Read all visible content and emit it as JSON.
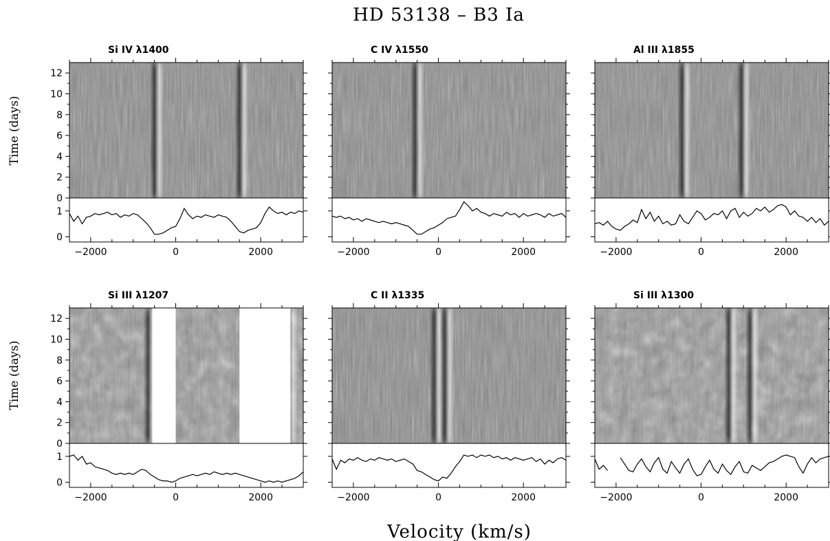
{
  "figure": {
    "title": "HD 53138  – B3 Ia",
    "xlabel": "Velocity (km/s)",
    "ylabel": "Time (days)"
  },
  "chart_data": [
    {
      "type": "heatmap",
      "title": "Si IV λ1400",
      "xlim": [
        -2500,
        3000
      ],
      "ylim": [
        0,
        13
      ],
      "xticks": [
        -2000,
        0,
        2000
      ],
      "yticks": [
        0,
        2,
        4,
        6,
        8,
        10,
        12
      ],
      "features_velocity": [
        -450,
        1550
      ],
      "masked_ranges": [],
      "profile": {
        "ylim": [
          -0.2,
          1.5
        ],
        "yticks": [
          0,
          1
        ],
        "x": [
          -2500,
          -2400,
          -2300,
          -2200,
          -2100,
          -2000,
          -1900,
          -1800,
          -1700,
          -1600,
          -1500,
          -1400,
          -1300,
          -1200,
          -1100,
          -1000,
          -900,
          -800,
          -700,
          -600,
          -500,
          -400,
          -300,
          -200,
          -100,
          0,
          100,
          200,
          300,
          400,
          500,
          600,
          700,
          800,
          900,
          1000,
          1100,
          1200,
          1300,
          1400,
          1500,
          1600,
          1700,
          1800,
          1900,
          2000,
          2100,
          2200,
          2300,
          2400,
          2500,
          2600,
          2700,
          2800,
          2900,
          3000
        ],
        "y": [
          0.9,
          0.6,
          0.8,
          0.5,
          0.75,
          0.8,
          0.9,
          0.85,
          0.9,
          0.95,
          0.85,
          0.9,
          0.75,
          0.85,
          0.8,
          0.9,
          0.85,
          0.7,
          0.55,
          0.35,
          0.1,
          0.1,
          0.15,
          0.25,
          0.35,
          0.4,
          0.7,
          1.1,
          0.85,
          0.7,
          0.8,
          0.75,
          0.85,
          0.8,
          0.75,
          0.85,
          0.8,
          0.75,
          0.6,
          0.4,
          0.2,
          0.15,
          0.25,
          0.3,
          0.35,
          0.55,
          0.9,
          1.15,
          1.0,
          0.9,
          0.95,
          0.85,
          0.95,
          0.9,
          1.0,
          0.95
        ]
      }
    },
    {
      "type": "heatmap",
      "title": "C IV λ1550",
      "xlim": [
        -2500,
        3000
      ],
      "ylim": [
        0,
        13
      ],
      "xticks": [
        -2000,
        0,
        2000
      ],
      "yticks": [
        0,
        2,
        4,
        6,
        8,
        10,
        12
      ],
      "features_velocity": [
        -500
      ],
      "masked_ranges": [],
      "profile": {
        "ylim": [
          -0.2,
          1.5
        ],
        "yticks": [
          0,
          1
        ],
        "x": [
          -2500,
          -2400,
          -2300,
          -2200,
          -2100,
          -2000,
          -1900,
          -1800,
          -1700,
          -1600,
          -1500,
          -1400,
          -1300,
          -1200,
          -1100,
          -1000,
          -900,
          -800,
          -700,
          -600,
          -500,
          -400,
          -300,
          -200,
          -100,
          0,
          100,
          200,
          300,
          400,
          500,
          600,
          700,
          800,
          900,
          1000,
          1100,
          1200,
          1300,
          1400,
          1500,
          1600,
          1700,
          1800,
          1900,
          2000,
          2100,
          2200,
          2300,
          2400,
          2500,
          2600,
          2700,
          2800,
          2900,
          3000
        ],
        "y": [
          0.8,
          0.75,
          0.8,
          0.7,
          0.75,
          0.65,
          0.7,
          0.6,
          0.7,
          0.65,
          0.6,
          0.55,
          0.6,
          0.55,
          0.5,
          0.55,
          0.5,
          0.45,
          0.4,
          0.25,
          0.1,
          0.1,
          0.2,
          0.3,
          0.35,
          0.45,
          0.55,
          0.7,
          0.75,
          0.8,
          1.05,
          1.35,
          1.2,
          1.0,
          1.1,
          0.95,
          0.9,
          0.8,
          0.9,
          0.85,
          0.8,
          0.95,
          0.85,
          0.9,
          0.75,
          0.9,
          0.8,
          0.85,
          0.9,
          0.85,
          0.75,
          0.9,
          0.8,
          0.85,
          0.9,
          0.75
        ]
      }
    },
    {
      "type": "heatmap",
      "title": "Al III λ1855",
      "xlim": [
        -2500,
        3000
      ],
      "ylim": [
        0,
        13
      ],
      "xticks": [
        -2000,
        0,
        2000
      ],
      "yticks": [
        0,
        2,
        4,
        6,
        8,
        10,
        12
      ],
      "features_velocity": [
        -400,
        1000
      ],
      "masked_ranges": [],
      "profile": {
        "ylim": [
          -0.2,
          1.5
        ],
        "yticks": [
          0,
          1
        ],
        "x": [
          -2500,
          -2400,
          -2300,
          -2200,
          -2100,
          -2000,
          -1900,
          -1800,
          -1700,
          -1600,
          -1500,
          -1400,
          -1300,
          -1200,
          -1100,
          -1000,
          -900,
          -800,
          -700,
          -600,
          -500,
          -400,
          -300,
          -200,
          -100,
          0,
          100,
          200,
          300,
          400,
          500,
          600,
          700,
          800,
          900,
          1000,
          1100,
          1200,
          1300,
          1400,
          1500,
          1600,
          1700,
          1800,
          1900,
          2000,
          2100,
          2200,
          2300,
          2400,
          2500,
          2600,
          2700,
          2800,
          2900,
          3000
        ],
        "y": [
          0.5,
          0.55,
          0.45,
          0.6,
          0.4,
          0.3,
          0.25,
          0.4,
          0.5,
          0.65,
          0.55,
          1.05,
          0.7,
          0.95,
          0.6,
          0.8,
          0.5,
          0.6,
          0.45,
          0.5,
          0.85,
          0.6,
          0.5,
          0.75,
          1.0,
          0.9,
          0.65,
          0.75,
          0.9,
          0.85,
          1.0,
          0.7,
          1.0,
          1.1,
          0.75,
          0.95,
          0.8,
          0.9,
          1.1,
          1.0,
          1.15,
          0.95,
          1.05,
          1.2,
          1.25,
          1.15,
          0.85,
          1.0,
          0.8,
          0.75,
          0.6,
          0.75,
          0.55,
          0.7,
          0.45,
          0.6
        ]
      }
    },
    {
      "type": "heatmap",
      "title": "Si III λ1207",
      "xlim": [
        -2500,
        3000
      ],
      "ylim": [
        0,
        13
      ],
      "xticks": [
        -2000,
        0,
        2000
      ],
      "yticks": [
        0,
        2,
        4,
        6,
        8,
        10,
        12
      ],
      "features_velocity": [
        -600,
        2700
      ],
      "masked_ranges": [
        [
          -550,
          0
        ],
        [
          1500,
          2700
        ]
      ],
      "profile": {
        "ylim": [
          -0.2,
          1.5
        ],
        "yticks": [
          0,
          1
        ],
        "x": [
          -2500,
          -2400,
          -2300,
          -2200,
          -2100,
          -2000,
          -1900,
          -1800,
          -1700,
          -1600,
          -1500,
          -1400,
          -1300,
          -1200,
          -1100,
          -1000,
          -900,
          -800,
          -700,
          -600,
          -500,
          -400,
          -300,
          -200,
          -100,
          0,
          100,
          200,
          300,
          400,
          500,
          600,
          700,
          800,
          900,
          1000,
          1100,
          1200,
          1300,
          1400,
          1500,
          1600,
          1700,
          1800,
          1900,
          2000,
          2100,
          2200,
          2300,
          2400,
          2500,
          2600,
          2700,
          2800,
          2900,
          3000
        ],
        "y": [
          1.0,
          1.05,
          0.85,
          1.0,
          0.7,
          0.75,
          0.6,
          0.55,
          0.5,
          0.45,
          0.35,
          0.3,
          0.35,
          0.3,
          0.35,
          0.3,
          0.4,
          0.5,
          0.45,
          0.3,
          0.2,
          0.1,
          0.05,
          0.05,
          0.0,
          0.05,
          0.15,
          0.2,
          0.25,
          0.3,
          0.25,
          0.3,
          0.35,
          0.3,
          0.4,
          0.35,
          0.3,
          0.35,
          0.3,
          0.35,
          0.3,
          0.25,
          0.2,
          0.15,
          0.1,
          0.05,
          0.0,
          0.05,
          0.0,
          0.05,
          0.0,
          0.05,
          0.1,
          0.15,
          0.25,
          0.4
        ]
      }
    },
    {
      "type": "heatmap",
      "title": "C II λ1335",
      "xlim": [
        -2500,
        3000
      ],
      "ylim": [
        0,
        13
      ],
      "xticks": [
        -2000,
        0,
        2000
      ],
      "yticks": [
        0,
        2,
        4,
        6,
        8,
        10,
        12
      ],
      "features_velocity": [
        -50,
        200
      ],
      "masked_ranges": [],
      "profile": {
        "ylim": [
          -0.2,
          1.5
        ],
        "yticks": [
          0,
          1
        ],
        "x": [
          -2500,
          -2400,
          -2300,
          -2200,
          -2100,
          -2000,
          -1900,
          -1800,
          -1700,
          -1600,
          -1500,
          -1400,
          -1300,
          -1200,
          -1100,
          -1000,
          -900,
          -800,
          -700,
          -600,
          -500,
          -400,
          -300,
          -200,
          -100,
          0,
          100,
          200,
          300,
          400,
          500,
          600,
          700,
          800,
          900,
          1000,
          1100,
          1200,
          1300,
          1400,
          1500,
          1600,
          1700,
          1800,
          1900,
          2000,
          2100,
          2200,
          2300,
          2400,
          2500,
          2600,
          2700,
          2800,
          2900,
          3000
        ],
        "y": [
          0.9,
          0.5,
          0.85,
          0.75,
          0.9,
          0.85,
          0.95,
          0.85,
          0.8,
          0.9,
          0.85,
          0.95,
          0.9,
          0.85,
          0.9,
          0.8,
          0.85,
          0.9,
          0.8,
          0.7,
          0.45,
          0.4,
          0.3,
          0.2,
          0.1,
          0.05,
          0.2,
          0.15,
          0.35,
          0.6,
          0.8,
          1.05,
          1.0,
          1.05,
          0.95,
          1.05,
          1.0,
          1.05,
          0.95,
          1.0,
          0.9,
          0.95,
          0.85,
          0.95,
          0.9,
          0.85,
          0.9,
          0.95,
          0.8,
          0.9,
          0.7,
          0.85,
          0.75,
          0.9,
          0.95,
          0.85
        ]
      }
    },
    {
      "type": "heatmap",
      "title": "Si III λ1300",
      "xlim": [
        -2500,
        3000
      ],
      "ylim": [
        0,
        13
      ],
      "xticks": [
        -2000,
        0,
        2000
      ],
      "yticks": [
        0,
        2,
        4,
        6,
        8,
        10,
        12
      ],
      "features_velocity": [
        700,
        1200
      ],
      "masked_ranges": [],
      "profile": {
        "ylim": [
          -0.2,
          1.5
        ],
        "yticks": [
          0,
          1
        ],
        "x": [
          -2500,
          -2400,
          -2300,
          -2200,
          -2100,
          -2000,
          -1900,
          -1800,
          -1700,
          -1600,
          -1500,
          -1400,
          -1300,
          -1200,
          -1100,
          -1000,
          -900,
          -800,
          -700,
          -600,
          -500,
          -400,
          -300,
          -200,
          -100,
          0,
          100,
          200,
          300,
          400,
          500,
          600,
          700,
          800,
          900,
          1000,
          1100,
          1200,
          1300,
          1400,
          1500,
          1600,
          1700,
          1800,
          1900,
          2000,
          2100,
          2200,
          2300,
          2400,
          2500,
          2600,
          2700,
          2800,
          2900,
          3000
        ],
        "y": [
          0.9,
          0.5,
          0.65,
          0.45,
          null,
          null,
          0.95,
          0.7,
          0.45,
          0.4,
          0.7,
          0.9,
          0.6,
          0.4,
          0.75,
          0.95,
          0.5,
          0.35,
          0.8,
          0.55,
          0.35,
          0.7,
          0.9,
          0.5,
          0.25,
          0.3,
          0.6,
          0.85,
          0.5,
          0.35,
          0.7,
          0.45,
          0.3,
          0.6,
          0.8,
          0.4,
          0.35,
          0.65,
          0.55,
          0.45,
          0.6,
          0.75,
          0.8,
          0.9,
          1.0,
          1.05,
          1.0,
          0.95,
          0.6,
          0.35,
          0.7,
          0.95,
          0.75,
          0.9,
          0.95,
          1.0
        ]
      }
    }
  ]
}
